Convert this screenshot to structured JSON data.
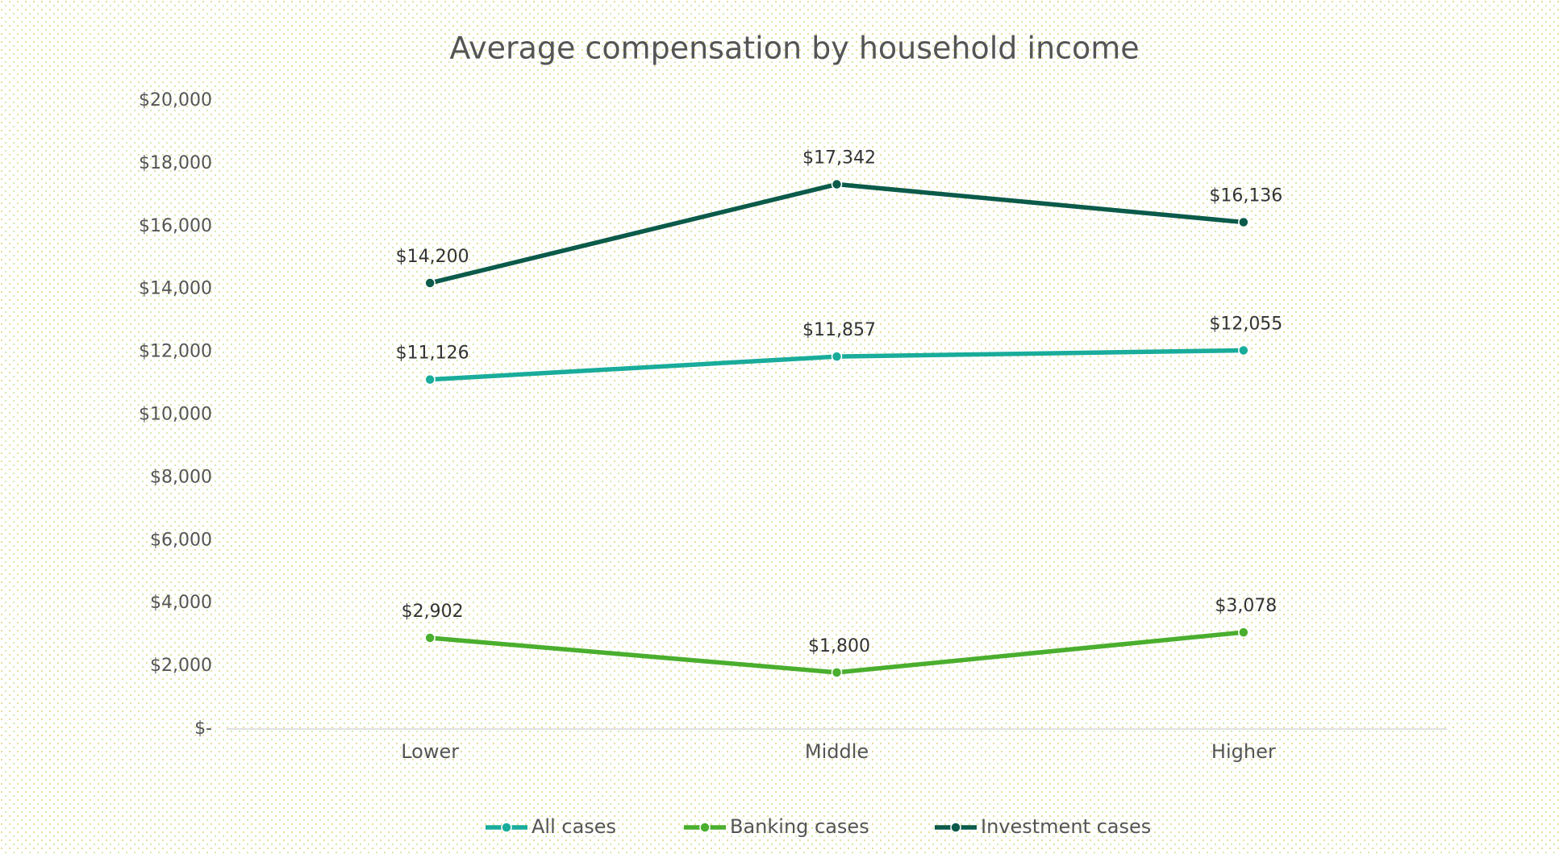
{
  "chart_data": {
    "type": "line",
    "title": "Average compensation by household income",
    "categories": [
      "Lower",
      "Middle",
      "Higher"
    ],
    "series": [
      {
        "name": "All cases",
        "color": "#19ac9b",
        "values": [
          11126,
          11857,
          12055
        ],
        "value_labels": [
          "$11,126",
          "$11,857",
          "$12,055"
        ]
      },
      {
        "name": "Banking cases",
        "color": "#4aae2e",
        "values": [
          2902,
          1800,
          3078
        ],
        "value_labels": [
          "$2,902",
          "$1,800",
          "$3,078"
        ]
      },
      {
        "name": "Investment cases",
        "color": "#0b5a4a",
        "values": [
          14200,
          17342,
          16136
        ],
        "value_labels": [
          "$14,200",
          "$17,342",
          "$16,136"
        ]
      }
    ],
    "ylim": [
      0,
      20000
    ],
    "yticks": [
      {
        "value": 20000,
        "label": "$20,000"
      },
      {
        "value": 18000,
        "label": "$18,000"
      },
      {
        "value": 16000,
        "label": "$16,000"
      },
      {
        "value": 14000,
        "label": "$14,000"
      },
      {
        "value": 12000,
        "label": "$12,000"
      },
      {
        "value": 10000,
        "label": "$10,000"
      },
      {
        "value": 8000,
        "label": "$8,000"
      },
      {
        "value": 6000,
        "label": "$6,000"
      },
      {
        "value": 4000,
        "label": "$4,000"
      },
      {
        "value": 2000,
        "label": "$2,000"
      },
      {
        "value": 0,
        "label": "$-"
      }
    ],
    "grid": false,
    "legend": "bottom"
  }
}
